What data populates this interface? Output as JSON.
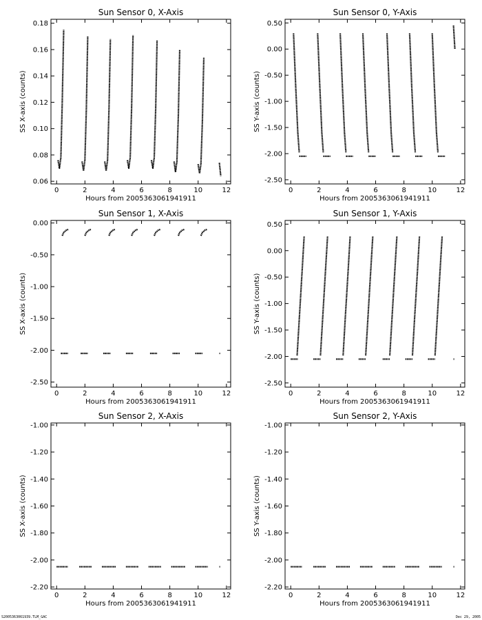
{
  "footer": {
    "left": "S2005363061939.TLM_GAC",
    "right": "Dec 29, 2005"
  },
  "chart_data": [
    {
      "type": "scatter",
      "title": "Sun Sensor 0, X-Axis",
      "xlabel": "Hours from 2005363061941911",
      "ylabel": "SS X-axis (counts)",
      "xlim": [
        -0.4,
        12.3
      ],
      "ylim": [
        0.058,
        0.183
      ],
      "xticks": [
        0,
        2,
        4,
        6,
        8,
        10,
        12
      ],
      "yticks": [
        0.06,
        0.08,
        0.1,
        0.12,
        0.14,
        0.16,
        0.18
      ],
      "ytick_labels": [
        "0.06",
        "0.08",
        "0.10",
        "0.12",
        "0.14",
        "0.16",
        "0.18"
      ],
      "grid": false,
      "segments": [
        {
          "x": [
            0.1,
            0.2,
            0.3,
            0.4,
            0.5
          ],
          "y": [
            0.076,
            0.07,
            0.078,
            0.12,
            0.175
          ]
        },
        {
          "x": [
            1.8,
            1.9,
            2.0,
            2.1,
            2.2
          ],
          "y": [
            0.075,
            0.068,
            0.076,
            0.115,
            0.17
          ]
        },
        {
          "x": [
            3.4,
            3.5,
            3.6,
            3.7,
            3.8
          ],
          "y": [
            0.075,
            0.068,
            0.076,
            0.115,
            0.168
          ]
        },
        {
          "x": [
            5.0,
            5.1,
            5.2,
            5.3,
            5.4
          ],
          "y": [
            0.076,
            0.07,
            0.078,
            0.115,
            0.171
          ]
        },
        {
          "x": [
            6.7,
            6.8,
            6.9,
            7.0,
            7.1
          ],
          "y": [
            0.076,
            0.07,
            0.078,
            0.115,
            0.167
          ]
        },
        {
          "x": [
            8.3,
            8.4,
            8.5,
            8.6,
            8.7
          ],
          "y": [
            0.075,
            0.067,
            0.075,
            0.11,
            0.16
          ]
        },
        {
          "x": [
            10.0,
            10.1,
            10.2,
            10.3,
            10.4
          ],
          "y": [
            0.073,
            0.066,
            0.073,
            0.105,
            0.154
          ]
        },
        {
          "x": [
            11.5,
            11.6
          ],
          "y": [
            0.074,
            0.064
          ]
        }
      ]
    },
    {
      "type": "scatter",
      "title": "Sun Sensor 0, Y-Axis",
      "xlabel": "Hours from 2005363061941911",
      "ylabel": "SS Y-axis (counts)",
      "xlim": [
        -0.4,
        12.3
      ],
      "ylim": [
        -2.58,
        0.57
      ],
      "xticks": [
        0,
        2,
        4,
        6,
        8,
        10,
        12
      ],
      "yticks": [
        0.5,
        0.0,
        -0.5,
        -1.0,
        -1.5,
        -2.0,
        -2.5
      ],
      "ytick_labels": [
        "0.50",
        "0.00",
        "-0.50",
        "-1.00",
        "-1.50",
        "-2.00",
        "-2.50"
      ],
      "grid": false,
      "segments": [
        {
          "x": [
            0.2,
            0.35,
            0.5,
            0.6
          ],
          "y": [
            0.3,
            -0.7,
            -1.6,
            -1.98
          ]
        },
        {
          "x": [
            0.6,
            1.1
          ],
          "y": [
            -2.05,
            -2.05
          ]
        },
        {
          "x": [
            1.9,
            2.05,
            2.2,
            2.3
          ],
          "y": [
            0.3,
            -0.7,
            -1.6,
            -1.98
          ]
        },
        {
          "x": [
            2.3,
            2.8
          ],
          "y": [
            -2.05,
            -2.05
          ]
        },
        {
          "x": [
            3.5,
            3.65,
            3.8,
            3.9
          ],
          "y": [
            0.3,
            -0.7,
            -1.6,
            -1.98
          ]
        },
        {
          "x": [
            3.9,
            4.4
          ],
          "y": [
            -2.05,
            -2.05
          ]
        },
        {
          "x": [
            5.1,
            5.25,
            5.4,
            5.5
          ],
          "y": [
            0.3,
            -0.7,
            -1.6,
            -1.98
          ]
        },
        {
          "x": [
            5.5,
            6.0
          ],
          "y": [
            -2.05,
            -2.05
          ]
        },
        {
          "x": [
            6.8,
            6.95,
            7.1,
            7.2
          ],
          "y": [
            0.3,
            -0.7,
            -1.6,
            -1.98
          ]
        },
        {
          "x": [
            7.2,
            7.7
          ],
          "y": [
            -2.05,
            -2.05
          ]
        },
        {
          "x": [
            8.4,
            8.55,
            8.7,
            8.8
          ],
          "y": [
            0.3,
            -0.7,
            -1.6,
            -1.98
          ]
        },
        {
          "x": [
            8.8,
            9.3
          ],
          "y": [
            -2.05,
            -2.05
          ]
        },
        {
          "x": [
            10.0,
            10.15,
            10.3,
            10.4
          ],
          "y": [
            0.3,
            -0.7,
            -1.6,
            -1.98
          ]
        },
        {
          "x": [
            10.4,
            10.9
          ],
          "y": [
            -2.05,
            -2.05
          ]
        },
        {
          "x": [
            11.5,
            11.6
          ],
          "y": [
            0.45,
            0.0
          ]
        }
      ]
    },
    {
      "type": "scatter",
      "title": "Sun Sensor 1, X-Axis",
      "xlabel": "Hours from 2005363061941911",
      "ylabel": "SS X-axis (counts)",
      "xlim": [
        -0.4,
        12.3
      ],
      "ylim": [
        -2.58,
        0.04
      ],
      "xticks": [
        0,
        2,
        4,
        6,
        8,
        10,
        12
      ],
      "yticks": [
        0.0,
        -0.5,
        -1.0,
        -1.5,
        -2.0,
        -2.5
      ],
      "ytick_labels": [
        "0.00",
        "-0.50",
        "-1.00",
        "-1.50",
        "-2.00",
        "-2.50"
      ],
      "grid": false,
      "segments": [
        {
          "x": [
            0.4,
            0.5,
            0.7,
            0.85
          ],
          "y": [
            -0.2,
            -0.15,
            -0.11,
            -0.1
          ]
        },
        {
          "x": [
            0.3,
            0.8
          ],
          "y": [
            -2.05,
            -2.05
          ]
        },
        {
          "x": [
            2.0,
            2.1,
            2.3,
            2.45
          ],
          "y": [
            -0.2,
            -0.15,
            -0.11,
            -0.1
          ]
        },
        {
          "x": [
            1.7,
            2.2
          ],
          "y": [
            -2.05,
            -2.05
          ]
        },
        {
          "x": [
            3.7,
            3.8,
            4.0,
            4.15
          ],
          "y": [
            -0.2,
            -0.15,
            -0.11,
            -0.1
          ]
        },
        {
          "x": [
            3.3,
            3.8
          ],
          "y": [
            -2.05,
            -2.05
          ]
        },
        {
          "x": [
            5.3,
            5.4,
            5.6,
            5.75
          ],
          "y": [
            -0.2,
            -0.15,
            -0.11,
            -0.1
          ]
        },
        {
          "x": [
            4.9,
            5.4
          ],
          "y": [
            -2.05,
            -2.05
          ]
        },
        {
          "x": [
            6.9,
            7.0,
            7.2,
            7.35
          ],
          "y": [
            -0.2,
            -0.15,
            -0.11,
            -0.1
          ]
        },
        {
          "x": [
            6.6,
            7.1
          ],
          "y": [
            -2.05,
            -2.05
          ]
        },
        {
          "x": [
            8.6,
            8.7,
            8.9,
            9.05
          ],
          "y": [
            -0.2,
            -0.15,
            -0.11,
            -0.1
          ]
        },
        {
          "x": [
            8.2,
            8.7
          ],
          "y": [
            -2.05,
            -2.05
          ]
        },
        {
          "x": [
            10.2,
            10.3,
            10.5,
            10.65
          ],
          "y": [
            -0.2,
            -0.15,
            -0.11,
            -0.1
          ]
        },
        {
          "x": [
            9.8,
            10.3
          ],
          "y": [
            -2.05,
            -2.05
          ]
        },
        {
          "x": [
            11.5,
            11.55
          ],
          "y": [
            -2.05,
            -2.05
          ]
        }
      ]
    },
    {
      "type": "scatter",
      "title": "Sun Sensor 1, Y-Axis",
      "xlabel": "Hours from 2005363061941911",
      "ylabel": "SS Y-axis (counts)",
      "xlim": [
        -0.4,
        12.3
      ],
      "ylim": [
        -2.58,
        0.57
      ],
      "xticks": [
        0,
        2,
        4,
        6,
        8,
        10,
        12
      ],
      "yticks": [
        0.5,
        0.0,
        -0.5,
        -1.0,
        -1.5,
        -2.0,
        -2.5
      ],
      "ytick_labels": [
        "0.50",
        "0.00",
        "-0.50",
        "-1.00",
        "-1.50",
        "-2.00",
        "-2.50"
      ],
      "grid": false,
      "segments": [
        {
          "x": [
            0.45,
            0.6,
            0.8,
            0.95
          ],
          "y": [
            -1.98,
            -1.3,
            -0.4,
            0.27
          ]
        },
        {
          "x": [
            0.0,
            0.5
          ],
          "y": [
            -2.05,
            -2.05
          ]
        },
        {
          "x": [
            2.1,
            2.25,
            2.45,
            2.6
          ],
          "y": [
            -1.98,
            -1.3,
            -0.4,
            0.27
          ]
        },
        {
          "x": [
            1.6,
            2.1
          ],
          "y": [
            -2.05,
            -2.05
          ]
        },
        {
          "x": [
            3.7,
            3.85,
            4.05,
            4.2
          ],
          "y": [
            -1.98,
            -1.3,
            -0.4,
            0.27
          ]
        },
        {
          "x": [
            3.2,
            3.7
          ],
          "y": [
            -2.05,
            -2.05
          ]
        },
        {
          "x": [
            5.3,
            5.45,
            5.65,
            5.8
          ],
          "y": [
            -1.98,
            -1.3,
            -0.4,
            0.27
          ]
        },
        {
          "x": [
            4.8,
            5.3
          ],
          "y": [
            -2.05,
            -2.05
          ]
        },
        {
          "x": [
            7.0,
            7.15,
            7.35,
            7.5
          ],
          "y": [
            -1.98,
            -1.3,
            -0.4,
            0.27
          ]
        },
        {
          "x": [
            6.5,
            7.0
          ],
          "y": [
            -2.05,
            -2.05
          ]
        },
        {
          "x": [
            8.6,
            8.75,
            8.95,
            9.1
          ],
          "y": [
            -1.98,
            -1.3,
            -0.4,
            0.27
          ]
        },
        {
          "x": [
            8.1,
            8.6
          ],
          "y": [
            -2.05,
            -2.05
          ]
        },
        {
          "x": [
            10.2,
            10.35,
            10.55,
            10.7
          ],
          "y": [
            -1.98,
            -1.3,
            -0.4,
            0.27
          ]
        },
        {
          "x": [
            9.7,
            10.2
          ],
          "y": [
            -2.05,
            -2.05
          ]
        },
        {
          "x": [
            11.5,
            11.55
          ],
          "y": [
            -2.05,
            -2.05
          ]
        }
      ]
    },
    {
      "type": "scatter",
      "title": "Sun Sensor 2, X-Axis",
      "xlabel": "Hours from 2005363061941911",
      "ylabel": "SS X-axis (counts)",
      "xlim": [
        -0.4,
        12.3
      ],
      "ylim": [
        -2.215,
        -0.985
      ],
      "xticks": [
        0,
        2,
        4,
        6,
        8,
        10,
        12
      ],
      "yticks": [
        -1.0,
        -1.2,
        -1.4,
        -1.6,
        -1.8,
        -2.0,
        -2.2
      ],
      "ytick_labels": [
        "-1.00",
        "-1.20",
        "-1.40",
        "-1.60",
        "-1.80",
        "-2.00",
        "-2.20"
      ],
      "grid": false,
      "segments": [
        {
          "x": [
            0.0,
            0.8
          ],
          "y": [
            -2.05,
            -2.05
          ]
        },
        {
          "x": [
            1.6,
            2.5
          ],
          "y": [
            -2.05,
            -2.05
          ]
        },
        {
          "x": [
            3.2,
            4.2
          ],
          "y": [
            -2.05,
            -2.05
          ]
        },
        {
          "x": [
            4.9,
            5.8
          ],
          "y": [
            -2.05,
            -2.05
          ]
        },
        {
          "x": [
            6.5,
            7.4
          ],
          "y": [
            -2.05,
            -2.05
          ]
        },
        {
          "x": [
            8.1,
            9.1
          ],
          "y": [
            -2.05,
            -2.05
          ]
        },
        {
          "x": [
            9.8,
            10.7
          ],
          "y": [
            -2.05,
            -2.05
          ]
        },
        {
          "x": [
            11.5,
            11.55
          ],
          "y": [
            -2.05,
            -2.05
          ]
        }
      ]
    },
    {
      "type": "scatter",
      "title": "Sun Sensor 2, Y-Axis",
      "xlabel": "Hours from 2005363061941911",
      "ylabel": "SS Y-axis (counts)",
      "xlim": [
        -0.4,
        12.3
      ],
      "ylim": [
        -2.215,
        -0.985
      ],
      "xticks": [
        0,
        2,
        4,
        6,
        8,
        10,
        12
      ],
      "yticks": [
        -1.0,
        -1.2,
        -1.4,
        -1.6,
        -1.8,
        -2.0,
        -2.2
      ],
      "ytick_labels": [
        "-1.00",
        "-1.20",
        "-1.40",
        "-1.60",
        "-1.80",
        "-2.00",
        "-2.20"
      ],
      "grid": false,
      "segments": [
        {
          "x": [
            0.0,
            0.8
          ],
          "y": [
            -2.05,
            -2.05
          ]
        },
        {
          "x": [
            1.6,
            2.5
          ],
          "y": [
            -2.05,
            -2.05
          ]
        },
        {
          "x": [
            3.2,
            4.2
          ],
          "y": [
            -2.05,
            -2.05
          ]
        },
        {
          "x": [
            4.9,
            5.8
          ],
          "y": [
            -2.05,
            -2.05
          ]
        },
        {
          "x": [
            6.5,
            7.4
          ],
          "y": [
            -2.05,
            -2.05
          ]
        },
        {
          "x": [
            8.1,
            9.1
          ],
          "y": [
            -2.05,
            -2.05
          ]
        },
        {
          "x": [
            9.8,
            10.7
          ],
          "y": [
            -2.05,
            -2.05
          ]
        },
        {
          "x": [
            11.5,
            11.55
          ],
          "y": [
            -2.05,
            -2.05
          ]
        }
      ]
    }
  ]
}
